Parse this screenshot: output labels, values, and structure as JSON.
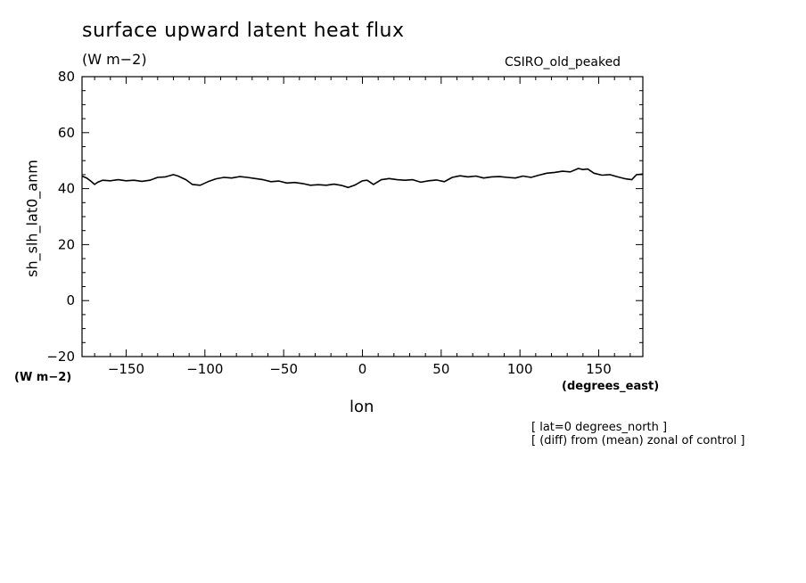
{
  "chart_data": {
    "type": "line",
    "title": "surface upward latent heat flux",
    "units_label": "(W m−2)",
    "model_label": "CSIRO_old_peaked",
    "ylabel": "sh_slh_lat0_anm",
    "y_units_label": "(W m−2)",
    "xlabel": "lon",
    "x_units_label": "(degrees_east)",
    "notes": [
      "[ lat=0 degrees_north ]",
      "[ (diff) from (mean) zonal of control ]"
    ],
    "xlim": [
      -178,
      178
    ],
    "ylim": [
      -20,
      80
    ],
    "x_ticks": [
      -150,
      -100,
      -50,
      0,
      50,
      100,
      150
    ],
    "x_tick_labels": [
      "−150",
      "−100",
      "−50",
      "0",
      "50",
      "100",
      "150"
    ],
    "y_ticks": [
      -20,
      0,
      20,
      40,
      60,
      80
    ],
    "y_tick_labels": [
      "−20",
      "0",
      "20",
      "40",
      "60",
      "80"
    ],
    "grid": false,
    "series": [
      {
        "x": [
          -178,
          -175,
          -172,
          -170,
          -168,
          -165,
          -160,
          -155,
          -150,
          -145,
          -140,
          -135,
          -130,
          -125,
          -120,
          -117,
          -112,
          -108,
          -103,
          -98,
          -93,
          -88,
          -83,
          -78,
          -73,
          -68,
          -63,
          -58,
          -53,
          -48,
          -43,
          -38,
          -33,
          -28,
          -23,
          -18,
          -13,
          -9,
          -5,
          0,
          3,
          7,
          12,
          17,
          22,
          27,
          32,
          37,
          42,
          47,
          52,
          57,
          62,
          67,
          72,
          77,
          82,
          87,
          92,
          97,
          102,
          107,
          112,
          117,
          122,
          127,
          132,
          137,
          140,
          143,
          147,
          152,
          157,
          162,
          167,
          171,
          174,
          178
        ],
        "y": [
          44.5,
          43.8,
          42.5,
          41.5,
          42.3,
          43.0,
          42.8,
          43.2,
          42.8,
          43.0,
          42.6,
          43.0,
          44.0,
          44.2,
          45.0,
          44.5,
          43.2,
          41.5,
          41.2,
          42.5,
          43.5,
          44.0,
          43.8,
          44.3,
          44.0,
          43.6,
          43.2,
          42.5,
          42.7,
          42.0,
          42.2,
          41.8,
          41.2,
          41.4,
          41.2,
          41.6,
          41.1,
          40.4,
          41.2,
          42.8,
          43.0,
          41.5,
          43.2,
          43.6,
          43.2,
          43.0,
          43.2,
          42.3,
          42.8,
          43.1,
          42.5,
          44.0,
          44.6,
          44.2,
          44.5,
          43.8,
          44.2,
          44.3,
          44.0,
          43.8,
          44.5,
          44.0,
          44.8,
          45.5,
          45.8,
          46.2,
          46.0,
          47.2,
          46.8,
          47.0,
          45.5,
          44.8,
          45.0,
          44.2,
          43.5,
          43.2,
          45.0,
          45.2
        ]
      }
    ]
  }
}
